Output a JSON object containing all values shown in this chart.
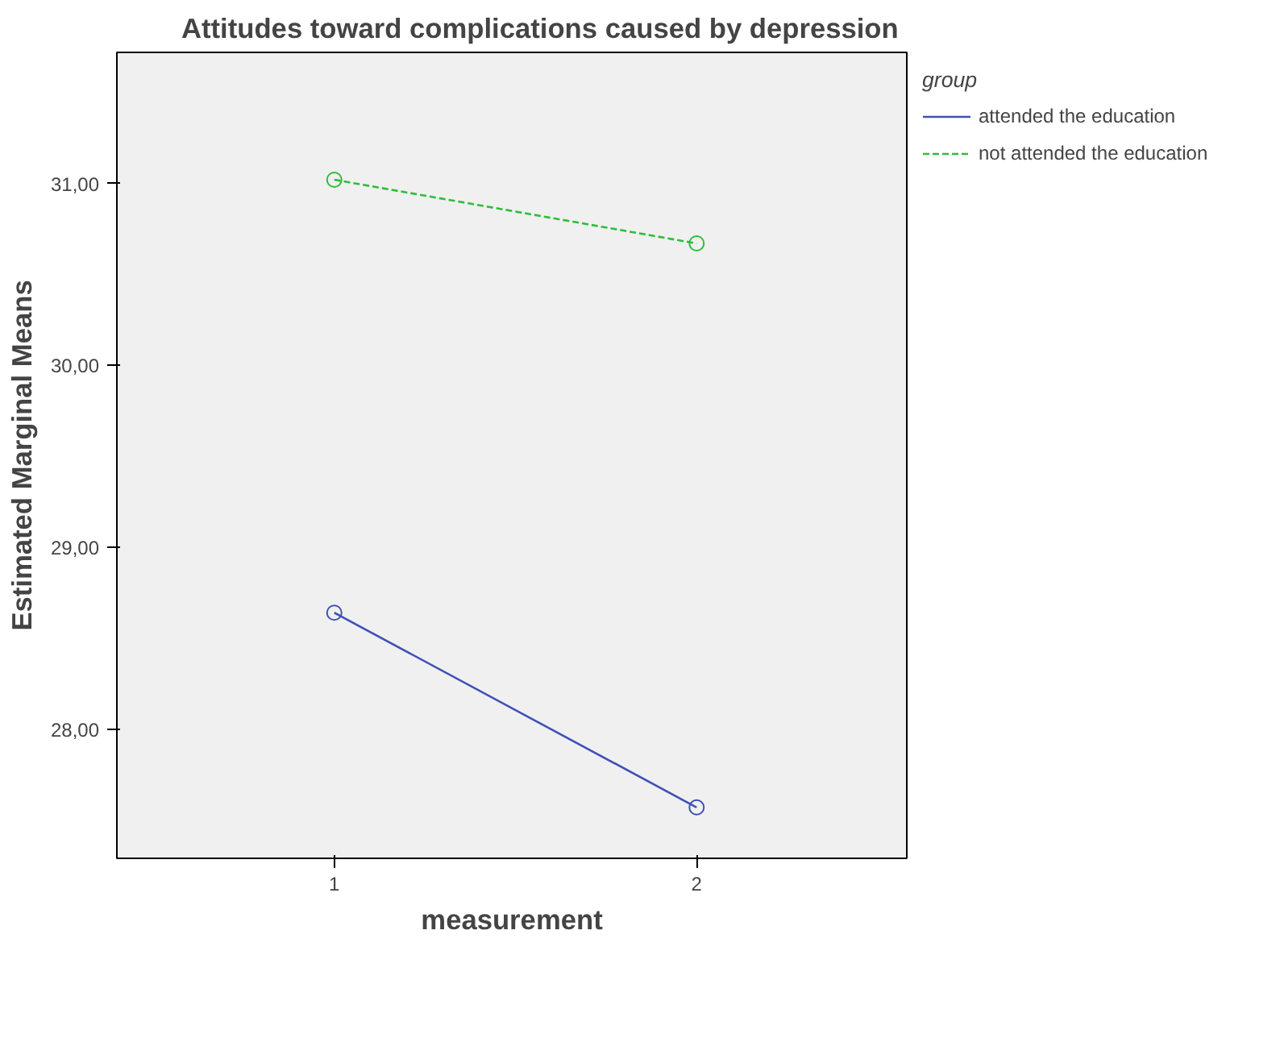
{
  "chart_data": {
    "type": "line",
    "title": "Attitudes toward complications caused by depression",
    "xlabel": "measurement",
    "ylabel": "Estimated Marginal Means",
    "legend_title": "group",
    "categories": [
      "1",
      "2"
    ],
    "series": [
      {
        "name": "attended the education",
        "color": "#3f51b5",
        "values": [
          28.64,
          27.57
        ],
        "line_style": "solid"
      },
      {
        "name": "not attended the education",
        "color": "#2ebd3a",
        "values": [
          31.02,
          30.67
        ],
        "line_style": "dashed"
      }
    ],
    "ylim": [
      27.29,
      31.72
    ],
    "yticks": [
      {
        "value": 28,
        "label": "28,00"
      },
      {
        "value": 29,
        "label": "29,00"
      },
      {
        "value": 30,
        "label": "30,00"
      },
      {
        "value": 31,
        "label": "31,00"
      }
    ],
    "marker": "circle",
    "legend": "right",
    "grid": false
  }
}
